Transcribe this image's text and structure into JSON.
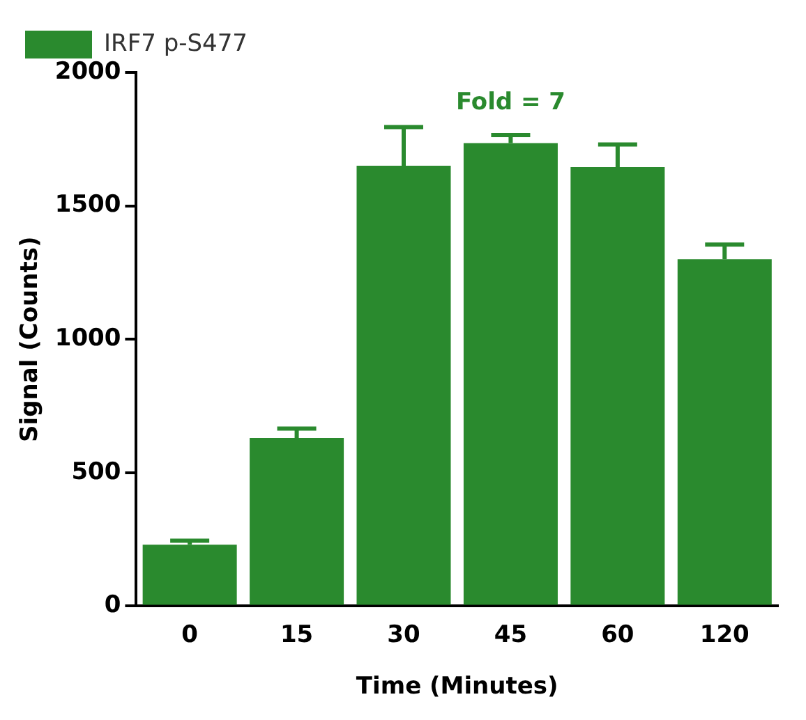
{
  "chart_data": {
    "type": "bar",
    "xlabel": "Time (Minutes)",
    "ylabel": "Signal (Counts)",
    "categories": [
      "0",
      "15",
      "30",
      "45",
      "60",
      "120"
    ],
    "series": [
      {
        "name": "IRF7 p-S477",
        "color": "#2a8a2e",
        "values": [
          230,
          630,
          1650,
          1735,
          1645,
          1300
        ],
        "errors": [
          [
            230,
            245
          ],
          [
            630,
            665
          ],
          [
            1650,
            1795
          ],
          [
            1735,
            1765
          ],
          [
            1645,
            1730
          ],
          [
            1300,
            1355
          ]
        ]
      }
    ],
    "ylim": [
      0,
      2000
    ],
    "yticks": [
      0,
      500,
      1000,
      1500,
      2000
    ],
    "grid": false,
    "legend": "top left",
    "annotations": [
      "Fold = 7"
    ]
  }
}
